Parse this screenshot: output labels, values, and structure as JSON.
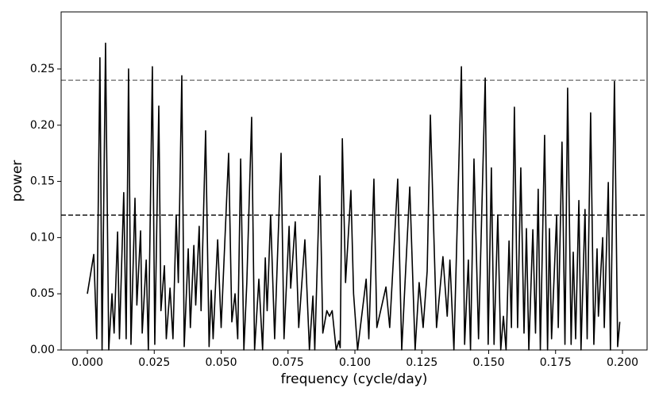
{
  "chart_data": {
    "type": "line",
    "xlabel": "frequency (cycle/day)",
    "ylabel": "power",
    "xlim": [
      -0.0098,
      0.2092
    ],
    "ylim": [
      0,
      0.3008
    ],
    "xticks": [
      {
        "value": 0,
        "label": "0.000"
      },
      {
        "value": 0.025,
        "label": "0.025"
      },
      {
        "value": 0.05,
        "label": "0.050"
      },
      {
        "value": 0.075,
        "label": "0.075"
      },
      {
        "value": 0.1,
        "label": "0.100"
      },
      {
        "value": 0.125,
        "label": "0.125"
      },
      {
        "value": 0.15,
        "label": "0.150"
      },
      {
        "value": 0.175,
        "label": "0.175"
      },
      {
        "value": 0.2,
        "label": "0.200"
      }
    ],
    "yticks": [
      {
        "value": 0,
        "label": "0.00"
      },
      {
        "value": 0.05,
        "label": "0.05"
      },
      {
        "value": 0.1,
        "label": "0.10"
      },
      {
        "value": 0.15,
        "label": "0.15"
      },
      {
        "value": 0.2,
        "label": "0.20"
      },
      {
        "value": 0.25,
        "label": "0.25"
      }
    ],
    "grid": false,
    "hlines": [
      {
        "value": 0.24,
        "color": "#666666"
      },
      {
        "value": 0.12,
        "color": "#000000"
      }
    ],
    "series": [
      {
        "color": "#000000",
        "x": [
          0,
          0.0024,
          0.0035,
          0.0047,
          0.0055,
          0.0068,
          0.008,
          0.0092,
          0.01,
          0.0113,
          0.012,
          0.0136,
          0.0145,
          0.0154,
          0.0163,
          0.0178,
          0.0185,
          0.0199,
          0.0205,
          0.022,
          0.0228,
          0.0243,
          0.0252,
          0.0267,
          0.0275,
          0.0288,
          0.0295,
          0.0309,
          0.032,
          0.0332,
          0.034,
          0.0353,
          0.0362,
          0.0377,
          0.0385,
          0.0398,
          0.0405,
          0.0418,
          0.0425,
          0.0442,
          0.0455,
          0.0463,
          0.047,
          0.0487,
          0.05,
          0.0528,
          0.054,
          0.0552,
          0.0562,
          0.0573,
          0.0585,
          0.0596,
          0.0614,
          0.0625,
          0.0641,
          0.0655,
          0.0665,
          0.0672,
          0.0685,
          0.07,
          0.0724,
          0.0735,
          0.0754,
          0.076,
          0.0777,
          0.079,
          0.0813,
          0.083,
          0.0843,
          0.085,
          0.0869,
          0.088,
          0.0895,
          0.0905,
          0.0915,
          0.093,
          0.094,
          0.0945,
          0.0953,
          0.0965,
          0.0985,
          0.0995,
          0.101,
          0.1042,
          0.1052,
          0.1071,
          0.1082,
          0.1116,
          0.113,
          0.116,
          0.1175,
          0.1205,
          0.1225,
          0.124,
          0.1255,
          0.127,
          0.1282,
          0.1305,
          0.1329,
          0.1345,
          0.1355,
          0.137,
          0.1398,
          0.141,
          0.1424,
          0.1432,
          0.1445,
          0.1462,
          0.1487,
          0.1498,
          0.151,
          0.152,
          0.1534,
          0.1545,
          0.1555,
          0.1565,
          0.1576,
          0.1585,
          0.1596,
          0.1608,
          0.162,
          0.1632,
          0.1641,
          0.165,
          0.1665,
          0.1675,
          0.1685,
          0.1693,
          0.1709,
          0.172,
          0.1727,
          0.1735,
          0.1754,
          0.176,
          0.1774,
          0.1785,
          0.1795,
          0.1808,
          0.1816,
          0.1825,
          0.1837,
          0.1845,
          0.186,
          0.1868,
          0.1881,
          0.1893,
          0.1905,
          0.191,
          0.1926,
          0.1932,
          0.1947,
          0.1955,
          0.197,
          0.1982,
          0.199
        ],
        "values": [
          0.05,
          0.085,
          0.01,
          0.26,
          0,
          0.273,
          0,
          0.05,
          0.015,
          0.105,
          0.01,
          0.14,
          0.01,
          0.25,
          0.005,
          0.135,
          0.04,
          0.106,
          0.015,
          0.08,
          0,
          0.252,
          0.005,
          0.217,
          0.035,
          0.075,
          0.01,
          0.055,
          0.01,
          0.12,
          0.06,
          0.244,
          0.003,
          0.09,
          0.02,
          0.093,
          0.04,
          0.11,
          0.035,
          0.195,
          0.003,
          0.053,
          0.01,
          0.098,
          0.02,
          0.175,
          0.025,
          0.05,
          0.01,
          0.17,
          0,
          0.06,
          0.207,
          0,
          0.063,
          0,
          0.082,
          0.035,
          0.12,
          0.01,
          0.175,
          0.01,
          0.11,
          0.055,
          0.114,
          0.02,
          0.098,
          0,
          0.048,
          0,
          0.155,
          0.015,
          0.035,
          0.03,
          0.035,
          0,
          0.008,
          0.002,
          0.188,
          0.06,
          0.142,
          0.05,
          0,
          0.063,
          0.01,
          0.152,
          0.02,
          0.056,
          0.02,
          0.152,
          0,
          0.145,
          0,
          0.06,
          0.02,
          0.07,
          0.209,
          0.02,
          0.083,
          0.03,
          0.08,
          0,
          0.252,
          0.005,
          0.08,
          0,
          0.17,
          0.01,
          0.242,
          0.005,
          0.162,
          0.005,
          0.12,
          0,
          0.03,
          0,
          0.097,
          0.02,
          0.216,
          0.02,
          0.162,
          0.015,
          0.108,
          0,
          0.107,
          0.015,
          0.143,
          0,
          0.191,
          0,
          0.108,
          0.01,
          0.12,
          0.02,
          0.185,
          0.005,
          0.233,
          0.005,
          0.087,
          0.01,
          0.133,
          0,
          0.125,
          0.01,
          0.211,
          0.005,
          0.09,
          0.03,
          0.1,
          0.02,
          0.149,
          0,
          0.239,
          0.003,
          0.025
        ]
      }
    ]
  }
}
